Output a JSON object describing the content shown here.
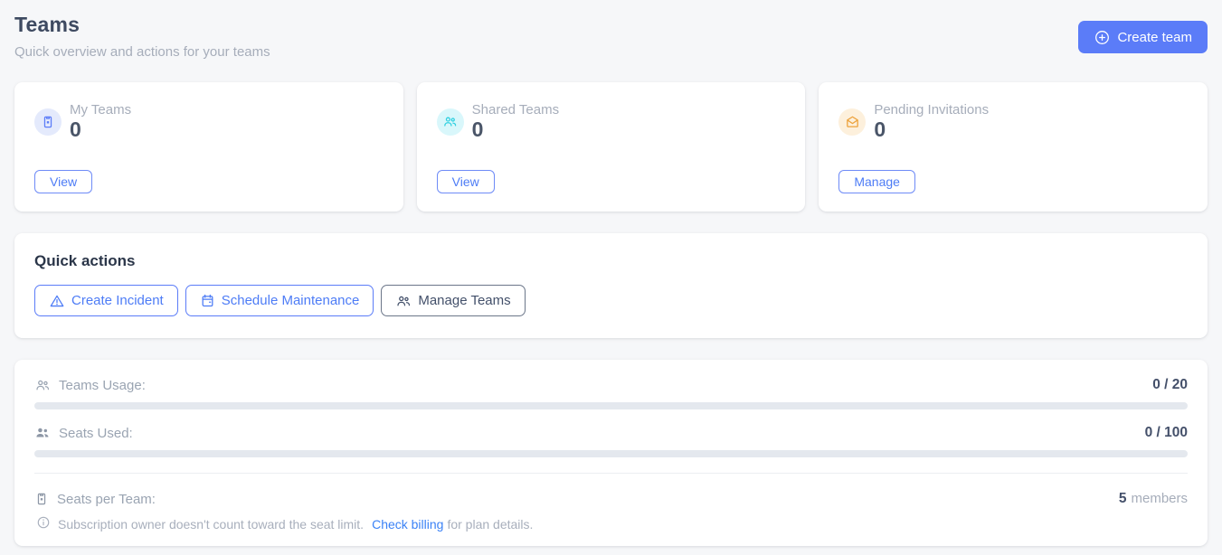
{
  "colors": {
    "accent_blue": "#5b7cf8",
    "link_blue": "#3b82f6",
    "text_dark": "#3e4a61",
    "text_muted": "#a6adba",
    "cyan_icon": "#2fd0e0",
    "amber_icon": "#eda23c",
    "progress_track": "#e4e8ee",
    "page_background": "#f6f7f9"
  },
  "header": {
    "title": "Teams",
    "subtitle": "Quick overview and actions for your teams",
    "create_team_label": "Create team"
  },
  "stats_cards": [
    {
      "label": "My Teams",
      "value": "0",
      "action_label": "View",
      "icon": "badge-icon"
    },
    {
      "label": "Shared Teams",
      "value": "0",
      "action_label": "View",
      "icon": "group-icon"
    },
    {
      "label": "Pending Invitations",
      "value": "0",
      "action_label": "Manage",
      "icon": "mail-open-icon"
    }
  ],
  "quick_actions": {
    "title": "Quick actions",
    "buttons": [
      {
        "label": "Create Incident",
        "icon": "warning-triangle-icon",
        "variant": "blue-outline"
      },
      {
        "label": "Schedule Maintenance",
        "icon": "calendar-icon",
        "variant": "blue-outline"
      },
      {
        "label": "Manage Teams",
        "icon": "people-icon",
        "variant": "slate-outline"
      }
    ]
  },
  "usage": {
    "teams_usage": {
      "label": "Teams Usage:",
      "used": 0,
      "limit": 20,
      "display": "0 / 20"
    },
    "seats_used": {
      "label": "Seats Used:",
      "used": 0,
      "limit": 100,
      "display": "0 / 100"
    },
    "seats_per_team": {
      "label": "Seats per Team:",
      "value": "5",
      "unit": "members"
    },
    "note": {
      "text": "Subscription owner doesn't count toward the seat limit.",
      "link_label": "Check billing",
      "suffix": "for plan details."
    }
  }
}
